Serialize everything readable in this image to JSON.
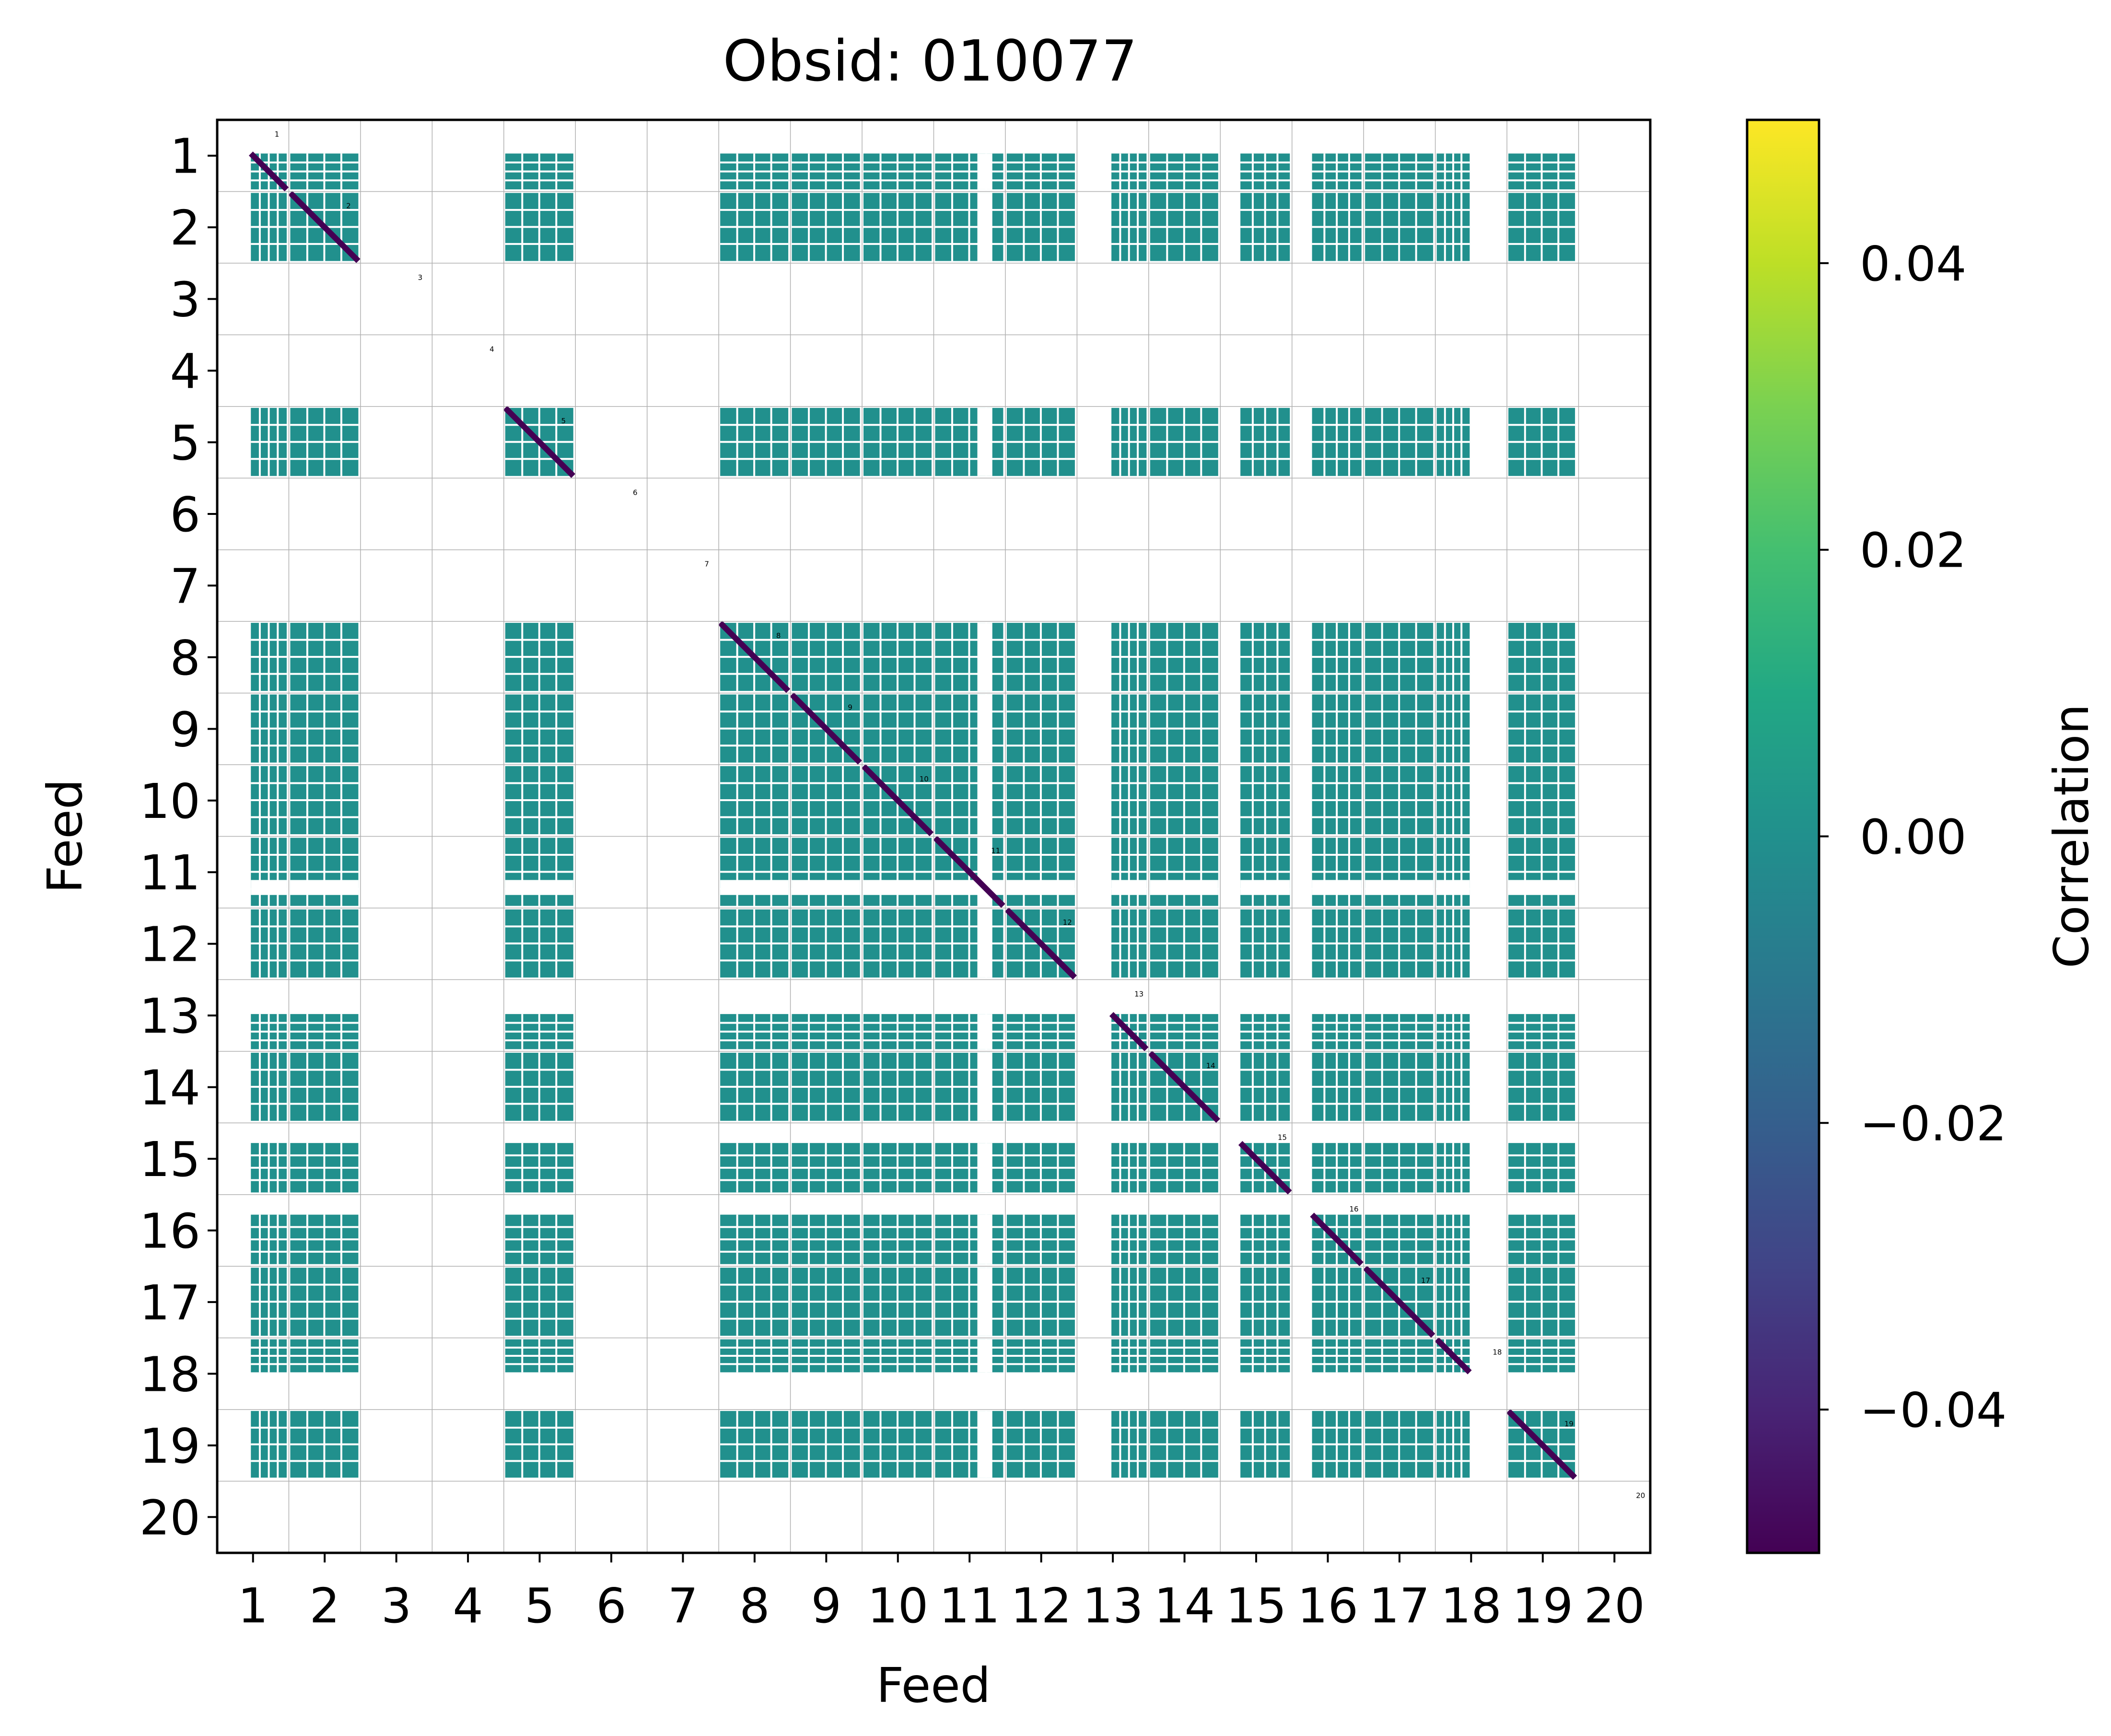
{
  "chart_data": {
    "type": "heatmap",
    "title": "Obsid: 010077",
    "xlabel": "Feed",
    "ylabel": "Feed",
    "x_ticks": [
      "1",
      "2",
      "3",
      "4",
      "5",
      "6",
      "7",
      "8",
      "9",
      "10",
      "11",
      "12",
      "13",
      "14",
      "15",
      "16",
      "17",
      "18",
      "19",
      "20"
    ],
    "y_ticks": [
      "1",
      "2",
      "3",
      "4",
      "5",
      "6",
      "7",
      "8",
      "9",
      "10",
      "11",
      "12",
      "13",
      "14",
      "15",
      "16",
      "17",
      "18",
      "19",
      "20"
    ],
    "diagonal_labels": [
      "1",
      "2",
      "3",
      "4",
      "5",
      "6",
      "7",
      "8",
      "9",
      "10",
      "11",
      "12",
      "13",
      "14",
      "15",
      "16",
      "17",
      "18",
      "19",
      "20"
    ],
    "feeds": [
      1,
      2,
      3,
      4,
      5,
      6,
      7,
      8,
      9,
      10,
      11,
      12,
      13,
      14,
      15,
      16,
      17,
      18,
      19,
      20
    ],
    "valid_feeds": [
      1,
      2,
      5,
      8,
      9,
      10,
      11,
      12,
      13,
      14,
      15,
      16,
      17,
      18,
      19
    ],
    "masked_feeds": [
      3,
      4,
      6,
      7,
      20
    ],
    "partially_masked_feeds": [
      11
    ],
    "off_diagonal_value": 0.0,
    "diagonal_value": -0.05,
    "colormap": "viridis",
    "vmin": -0.05,
    "vmax": 0.05,
    "grid": true,
    "colorbar": {
      "label": "Correlation",
      "ticks": [
        0.04,
        0.02,
        0.0,
        -0.02,
        -0.04
      ],
      "tick_labels": [
        "0.04",
        "0.02",
        "0.00",
        "−0.02",
        "−0.04"
      ]
    },
    "colors": {
      "off_diagonal": "#21908d",
      "diagonal": "#440154",
      "gridline": "#b0b0b0",
      "cell_divider": "#ffffff"
    }
  }
}
